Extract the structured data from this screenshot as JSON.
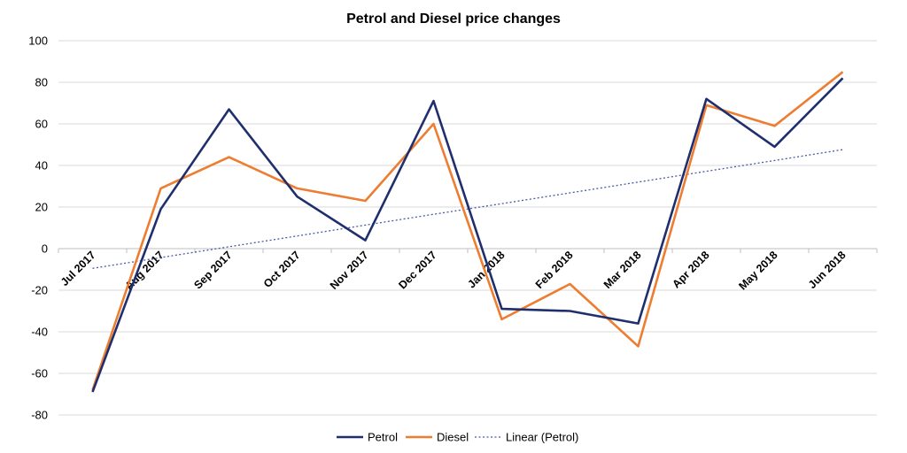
{
  "chart_data": {
    "type": "line",
    "title": "Petrol and Diesel price changes",
    "xlabel": "",
    "ylabel": "",
    "categories": [
      "Jul 2017",
      "Aug 2017",
      "Sep 2017",
      "Oct 2017",
      "Nov 2017",
      "Dec 2017",
      "Jan 2018",
      "Feb 2018",
      "Mar 2018",
      "Apr 2018",
      "May 2018",
      "Jun 2018"
    ],
    "ylim": [
      -80,
      100
    ],
    "yticks": [
      -80,
      -60,
      -40,
      -20,
      0,
      20,
      40,
      60,
      80,
      100
    ],
    "grid": true,
    "legend_position": "bottom",
    "series": [
      {
        "name": "Petrol",
        "color": "#1f2f6e",
        "style": "solid",
        "values": [
          -69,
          19,
          67,
          25,
          4,
          71,
          -29,
          -30,
          -36,
          72,
          49,
          82
        ]
      },
      {
        "name": "Diesel",
        "color": "#ed7d31",
        "style": "solid",
        "values": [
          -68,
          29,
          44,
          29,
          23,
          60,
          -34,
          -17,
          -47,
          69,
          59,
          85
        ]
      },
      {
        "name": "Linear (Petrol)",
        "color": "#4a5aa8",
        "style": "dotted",
        "values": [
          -9.5,
          -4.3,
          0.9,
          6.1,
          11.3,
          16.5,
          21.6,
          26.8,
          32.0,
          37.2,
          42.4,
          47.6
        ]
      }
    ]
  }
}
